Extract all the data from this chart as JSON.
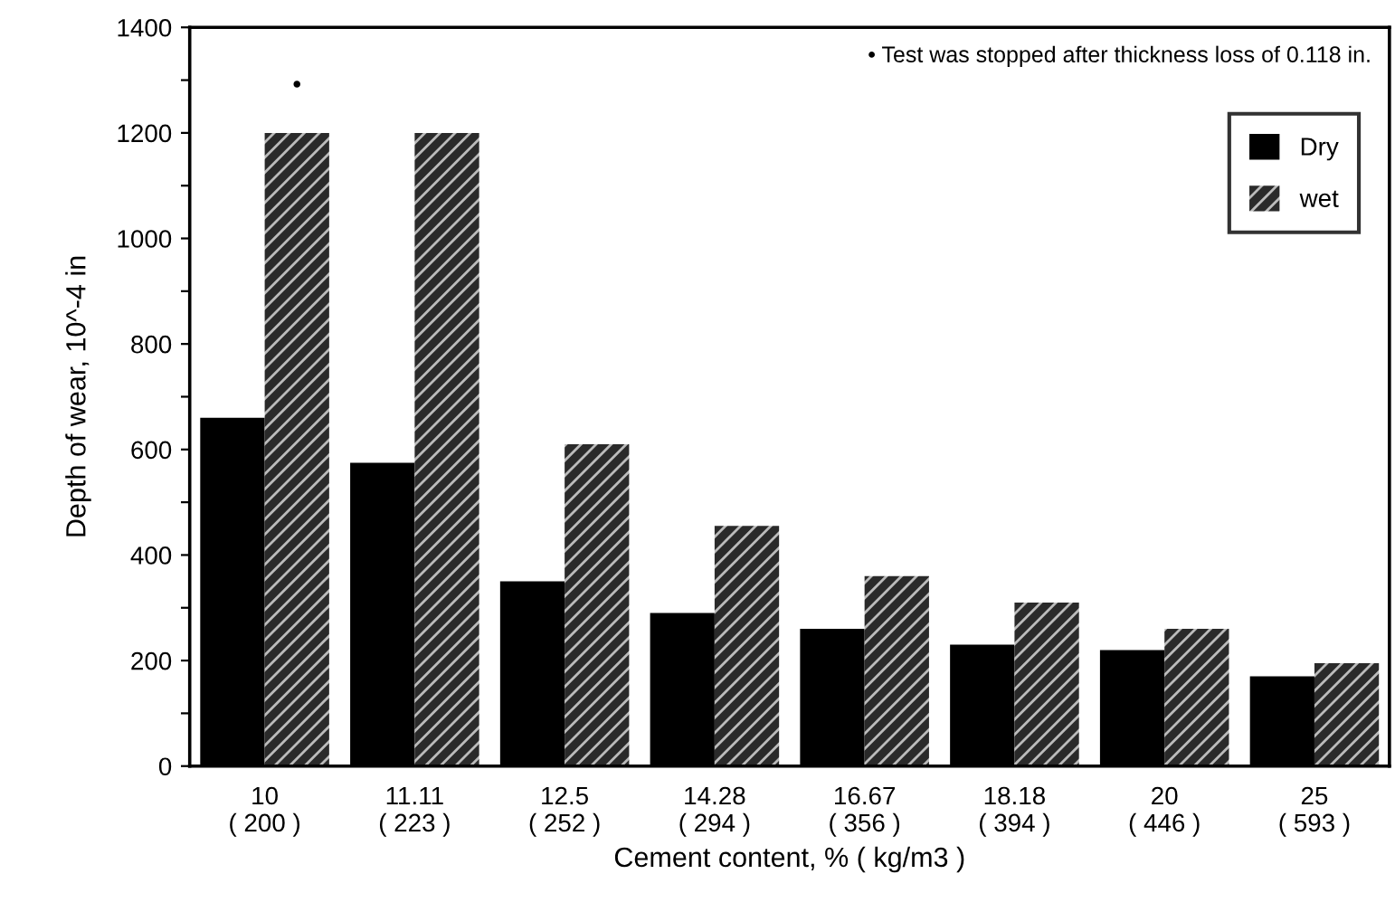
{
  "chart_data": {
    "type": "bar",
    "xlabel": "Cement content, % ( kg/m3 )",
    "ylabel": "Depth of wear, 10^-4 in",
    "categories": [
      "10\n( 200 )",
      "11.11\n( 223 )",
      "12.5\n( 252 )",
      "14.28\n( 294 )",
      "16.67\n( 356 )",
      "18.18\n( 394 )",
      "20\n( 446 )",
      "25\n( 593 )"
    ],
    "series": [
      {
        "name": "Dry",
        "color": "#000000",
        "values": [
          660,
          575,
          350,
          290,
          260,
          230,
          220,
          170
        ]
      },
      {
        "name": "wet",
        "color": "#2a2a2a",
        "values": [
          1200,
          1200,
          610,
          455,
          360,
          310,
          260,
          195
        ]
      }
    ],
    "ylim": [
      0,
      1400
    ],
    "yticks": [
      0,
      {
        "value": 100,
        "label": null
      },
      200,
      {
        "value": 300,
        "label": null
      },
      400,
      {
        "value": 500,
        "label": null
      },
      600,
      {
        "value": 700,
        "label": null
      },
      800,
      {
        "value": 900,
        "label": null
      },
      1000,
      {
        "value": 1100,
        "label": null
      },
      1200,
      {
        "value": 1300,
        "label": null
      },
      1400
    ],
    "annotations": [
      "•",
      "• Test was stopped after thickness loss of 0.118 in."
    ],
    "legend": "top right",
    "grid": false
  }
}
